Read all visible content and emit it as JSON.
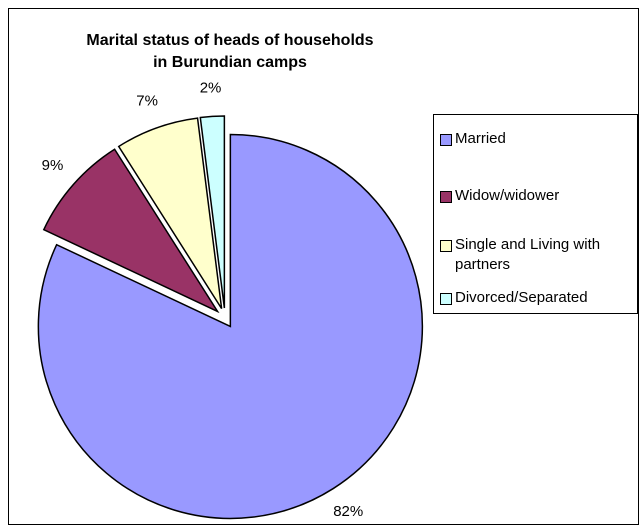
{
  "chart_data": {
    "type": "pie",
    "title": "Marital status of heads of households in Burundian camps",
    "categories": [
      "Married",
      "Widow/widower",
      "Single and Living with partners",
      "Divorced/Separated"
    ],
    "values": [
      82,
      9,
      7,
      2
    ],
    "value_labels": [
      "82%",
      "9%",
      "7%",
      "2%"
    ],
    "colors": [
      "#9999ff",
      "#993366",
      "#ffffcc",
      "#ccffff"
    ],
    "legend": "right"
  }
}
